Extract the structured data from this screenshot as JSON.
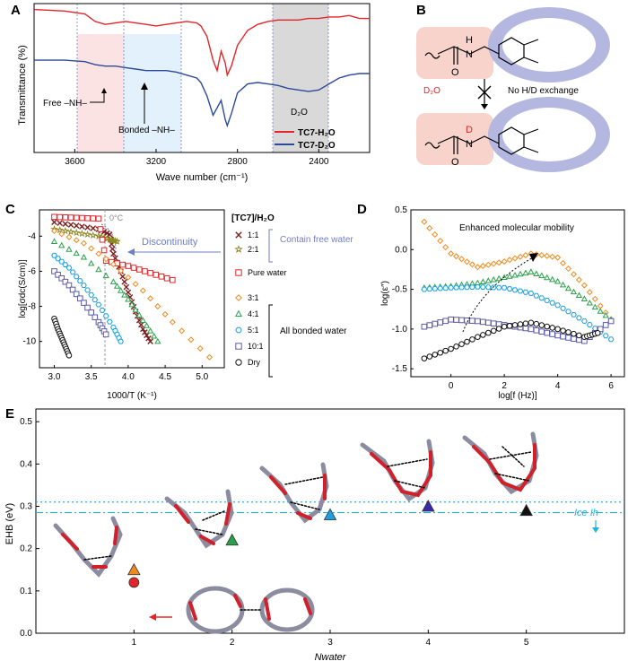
{
  "panels": {
    "A": {
      "letter": "A",
      "ylabel": "Transmittance (%)",
      "xlabel": "Wave number (cm⁻¹)",
      "xticks": [
        "3600",
        "3200",
        "2800",
        "2400"
      ],
      "free_nh": "Free –NH–",
      "bonded_nh": "Bonded –NH–",
      "d2o": "D₂O",
      "legend": [
        {
          "name": "TC7-H₂O",
          "color": "#e2262a"
        },
        {
          "name": "TC7-D₂O",
          "color": "#2c4a9a"
        }
      ]
    },
    "B": {
      "letter": "B",
      "d2o": "D₂O",
      "no_exchange": "No H/D exchange",
      "h_label": "H",
      "d_label": "D",
      "n_label": "N",
      "o_label": "O"
    },
    "C": {
      "letter": "C",
      "ylabel": "log[σdc(S/cm)]",
      "xlabel": "1000/T (K⁻¹)",
      "zero_c": "0°C",
      "discontinuity": "Discontinuity",
      "legend_title": "[TC7]/H₂O",
      "contain_free_water": "Contain free water",
      "all_bonded_water": "All bonded water"
    },
    "D": {
      "letter": "D",
      "ylabel": "log(ε″)",
      "xlabel": "log[f (Hz)]",
      "annotation": "Enhanced molecular mobility"
    },
    "E": {
      "letter": "E",
      "ylabel": "EHB (eV)",
      "xlabel": "Nwater",
      "ice_label": "Ice Ih"
    }
  },
  "colors": {
    "h2o": "#e2262a",
    "d2o": "#2c4a9a",
    "r11": "#7a1e1e",
    "r21": "#8e8a2a",
    "pure": "#e2262a",
    "r31": "#f08a1e",
    "r41": "#2aa04a",
    "r51": "#1ea0e0",
    "r101": "#5a5aa8",
    "dry": "#111111",
    "ice": "#1eb4dc",
    "accent": "#6e7ec8"
  },
  "chart_data": [
    {
      "panel": "A",
      "type": "line",
      "xlabel": "Wave number (cm⁻¹)",
      "ylabel": "Transmittance (%)",
      "xlim": [
        3800,
        2150
      ],
      "x_reversed": true,
      "series": [
        {
          "name": "TC7-H₂O",
          "x": [
            3800,
            3650,
            3550,
            3500,
            3450,
            3400,
            3350,
            3300,
            3250,
            3200,
            3150,
            3100,
            3050,
            3000,
            2980,
            2950,
            2920,
            2900,
            2880,
            2860,
            2850,
            2830,
            2800,
            2750,
            2700,
            2650,
            2600,
            2550,
            2500,
            2450,
            2400,
            2350,
            2300,
            2250,
            2200,
            2150
          ],
          "y": [
            0.96,
            0.95,
            0.93,
            0.88,
            0.86,
            0.87,
            0.88,
            0.87,
            0.86,
            0.85,
            0.86,
            0.87,
            0.88,
            0.87,
            0.85,
            0.78,
            0.62,
            0.55,
            0.68,
            0.6,
            0.52,
            0.58,
            0.72,
            0.82,
            0.86,
            0.88,
            0.89,
            0.89,
            0.89,
            0.9,
            0.9,
            0.91,
            0.91,
            0.92,
            0.9,
            0.9
          ]
        },
        {
          "name": "TC7-D₂O",
          "x": [
            3800,
            3650,
            3550,
            3500,
            3450,
            3400,
            3350,
            3300,
            3250,
            3200,
            3150,
            3100,
            3050,
            3000,
            2980,
            2950,
            2920,
            2900,
            2880,
            2860,
            2850,
            2830,
            2800,
            2750,
            2700,
            2650,
            2600,
            2550,
            2500,
            2450,
            2400,
            2350,
            2300,
            2250,
            2200,
            2150
          ],
          "y": [
            0.62,
            0.62,
            0.61,
            0.59,
            0.58,
            0.58,
            0.57,
            0.56,
            0.55,
            0.55,
            0.55,
            0.54,
            0.52,
            0.5,
            0.47,
            0.38,
            0.25,
            0.3,
            0.35,
            0.22,
            0.18,
            0.26,
            0.4,
            0.46,
            0.47,
            0.46,
            0.45,
            0.43,
            0.42,
            0.41,
            0.42,
            0.46,
            0.5,
            0.52,
            0.53,
            0.53
          ]
        }
      ]
    },
    {
      "panel": "C",
      "type": "scatter",
      "xlabel": "1000/T (K⁻¹)",
      "ylabel": "log[σdc(S/cm)]",
      "xlim": [
        2.8,
        5.3
      ],
      "ylim": [
        -11.5,
        -2.5
      ],
      "xticks": [
        3.0,
        3.5,
        4.0,
        4.5,
        5.0
      ],
      "yticks": [
        -4,
        -6,
        -8,
        -10
      ],
      "series": [
        {
          "name": "1:1",
          "marker": "x",
          "x": [
            3.0,
            3.3,
            3.6,
            3.75,
            3.8,
            3.9,
            4.0,
            4.1,
            4.2,
            4.3
          ],
          "y": [
            -3.2,
            -3.4,
            -3.6,
            -3.9,
            -5.0,
            -6.0,
            -7.2,
            -8.3,
            -9.3,
            -10.0
          ]
        },
        {
          "name": "2:1",
          "marker": "star",
          "x": [
            3.0,
            3.3,
            3.6,
            3.75,
            3.85
          ],
          "y": [
            -3.6,
            -3.8,
            -4.0,
            -4.2,
            -4.3
          ]
        },
        {
          "name": "Pure water",
          "marker": "square-open",
          "x": [
            3.0,
            3.3,
            3.6,
            3.7,
            4.0,
            4.3,
            4.6
          ],
          "y": [
            -2.9,
            -2.95,
            -3.0,
            -5.4,
            -5.7,
            -6.1,
            -6.5
          ]
        },
        {
          "name": "3:1",
          "marker": "diamond-open",
          "x": [
            3.0,
            3.4,
            3.8,
            4.2,
            4.6,
            5.1
          ],
          "y": [
            -3.7,
            -4.4,
            -5.6,
            -7.1,
            -8.9,
            -10.9
          ]
        },
        {
          "name": "4:1",
          "marker": "triangle-open",
          "x": [
            3.0,
            3.4,
            3.8,
            4.0,
            4.2,
            4.4
          ],
          "y": [
            -4.3,
            -5.2,
            -6.6,
            -7.6,
            -8.8,
            -10.0
          ]
        },
        {
          "name": "5:1",
          "marker": "hexagon-open",
          "x": [
            3.0,
            3.2,
            3.4,
            3.6,
            3.8,
            3.9
          ],
          "y": [
            -5.1,
            -5.8,
            -6.8,
            -7.9,
            -9.2,
            -10.0
          ]
        },
        {
          "name": "10:1",
          "marker": "square-open",
          "x": [
            3.0,
            3.2,
            3.4,
            3.6,
            3.7
          ],
          "y": [
            -6.0,
            -6.8,
            -7.8,
            -8.9,
            -9.6
          ]
        },
        {
          "name": "Dry",
          "marker": "circle-open",
          "x": [
            3.0,
            3.05,
            3.1,
            3.15,
            3.2
          ],
          "y": [
            -8.7,
            -9.3,
            -9.8,
            -10.3,
            -10.8
          ]
        }
      ]
    },
    {
      "panel": "D",
      "type": "scatter",
      "xlabel": "log[f (Hz)]",
      "ylabel": "log(ε″)",
      "xlim": [
        -1.5,
        6.5
      ],
      "ylim": [
        -1.6,
        0.5
      ],
      "xticks": [
        0,
        2,
        4,
        6
      ],
      "yticks": [
        -1.5,
        -1.0,
        -0.5,
        0.0,
        0.5
      ],
      "series": [
        {
          "name": "3:1",
          "marker": "diamond-open",
          "x": [
            -1,
            0,
            1,
            2,
            3,
            4,
            5,
            6
          ],
          "y": [
            0.35,
            -0.05,
            -0.22,
            -0.15,
            -0.05,
            -0.1,
            -0.45,
            -0.88
          ]
        },
        {
          "name": "4:1",
          "marker": "triangle-open",
          "x": [
            -1,
            0,
            1,
            2,
            3,
            4,
            5,
            6
          ],
          "y": [
            -0.48,
            -0.46,
            -0.42,
            -0.35,
            -0.28,
            -0.4,
            -0.62,
            -0.88
          ]
        },
        {
          "name": "5:1",
          "marker": "hexagon-open",
          "x": [
            -1,
            0,
            1,
            2,
            3,
            4,
            5,
            6
          ],
          "y": [
            -0.5,
            -0.48,
            -0.47,
            -0.48,
            -0.55,
            -0.7,
            -0.9,
            -1.13
          ]
        },
        {
          "name": "10:1",
          "marker": "square-open",
          "x": [
            -1,
            0,
            1,
            2,
            3,
            4,
            5,
            6
          ],
          "y": [
            -0.97,
            -0.88,
            -0.9,
            -0.95,
            -1.0,
            -1.08,
            -1.15,
            -0.9
          ]
        },
        {
          "name": "Dry",
          "marker": "circle-open",
          "x": [
            -1,
            0,
            1,
            2,
            3,
            4,
            5,
            5.5
          ],
          "y": [
            -1.37,
            -1.25,
            -1.1,
            -0.97,
            -0.92,
            -1.0,
            -1.1,
            -1.05
          ]
        }
      ]
    },
    {
      "panel": "E",
      "type": "scatter",
      "xlabel": "Nwater",
      "ylabel": "EHB (eV)",
      "xlim": [
        0,
        6
      ],
      "ylim": [
        0,
        0.53
      ],
      "xticks": [
        1,
        2,
        3,
        4,
        5
      ],
      "yticks": [
        0.0,
        0.1,
        0.2,
        0.3,
        0.4,
        0.5
      ],
      "reference_lines": [
        0.31,
        0.285
      ],
      "points": [
        {
          "x": 1,
          "y": 0.12,
          "marker": "circle",
          "color": "#e2262a"
        },
        {
          "x": 1,
          "y": 0.15,
          "marker": "triangle",
          "color": "#f08a1e"
        },
        {
          "x": 2,
          "y": 0.22,
          "marker": "triangle",
          "color": "#2aa04a"
        },
        {
          "x": 3,
          "y": 0.28,
          "marker": "triangle",
          "color": "#1ea0e0"
        },
        {
          "x": 4,
          "y": 0.3,
          "marker": "triangle",
          "color": "#3a2aa8"
        },
        {
          "x": 5,
          "y": 0.29,
          "marker": "triangle",
          "color": "#111111"
        }
      ]
    }
  ]
}
